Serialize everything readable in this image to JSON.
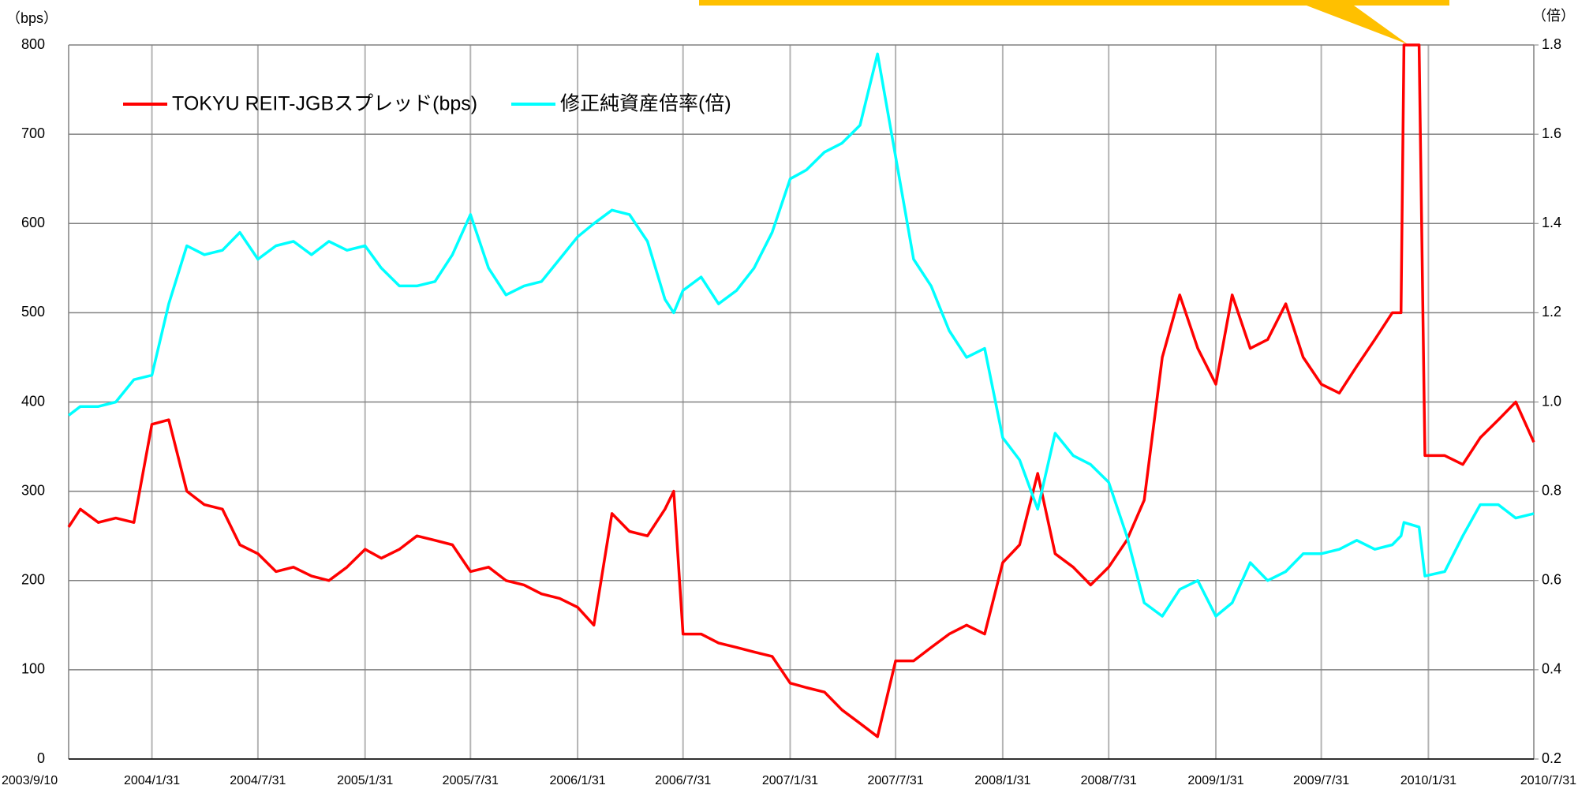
{
  "chart_data": {
    "type": "line",
    "axis_label": "（bps）",
    "y2_label": "（倍）",
    "x": [
      "2003/9/10",
      "2003/9/30",
      "2003/10/31",
      "2003/11/30",
      "2003/12/31",
      "2004/1/31",
      "2004/2/29",
      "2004/3/31",
      "2004/4/30",
      "2004/5/31",
      "2004/6/30",
      "2004/7/31",
      "2004/8/31",
      "2004/9/30",
      "2004/10/31",
      "2004/11/30",
      "2004/12/31",
      "2005/1/31",
      "2005/2/28",
      "2005/3/31",
      "2005/4/30",
      "2005/5/31",
      "2005/6/30",
      "2005/7/31",
      "2005/8/31",
      "2005/9/30",
      "2005/10/31",
      "2005/11/30",
      "2005/12/31",
      "2006/1/31",
      "2006/2/28",
      "2006/3/31",
      "2006/4/30",
      "2006/5/31",
      "2006/6/30",
      "2006/7/15",
      "2006/7/31",
      "2006/8/31",
      "2006/9/30",
      "2006/10/31",
      "2006/11/30",
      "2006/12/31",
      "2007/1/31",
      "2007/2/28",
      "2007/3/31",
      "2007/4/30",
      "2007/5/31",
      "2007/6/30",
      "2007/7/31",
      "2007/8/31",
      "2007/9/30",
      "2007/10/31",
      "2007/11/30",
      "2007/12/31",
      "2008/1/31",
      "2008/2/29",
      "2008/3/31",
      "2008/4/30",
      "2008/5/31",
      "2008/6/30",
      "2008/7/31",
      "2008/8/31",
      "2008/9/30",
      "2008/10/31",
      "2008/11/30",
      "2008/12/31",
      "2009/1/31",
      "2009/2/28",
      "2009/3/31",
      "2009/4/30",
      "2009/5/31",
      "2009/6/30",
      "2009/7/31",
      "2009/8/31",
      "2009/9/30",
      "2009/10/31",
      "2009/11/30",
      "2009/12/15",
      "2009/12/20",
      "2010/1/15",
      "2010/1/25",
      "2010/2/28",
      "2010/3/31",
      "2010/4/30",
      "2010/5/31",
      "2010/6/30",
      "2010/7/31"
    ],
    "series": [
      {
        "name": "TOKYU REIT-JGBスプレッド(bps)",
        "color": "#ff0000",
        "values": [
          260,
          280,
          265,
          270,
          265,
          375,
          380,
          300,
          285,
          280,
          240,
          230,
          210,
          215,
          205,
          200,
          215,
          235,
          225,
          235,
          250,
          245,
          240,
          210,
          215,
          200,
          195,
          185,
          180,
          170,
          150,
          275,
          255,
          250,
          280,
          300,
          140,
          140,
          130,
          125,
          120,
          115,
          85,
          80,
          75,
          55,
          40,
          25,
          110,
          110,
          125,
          140,
          150,
          140,
          220,
          240,
          320,
          230,
          215,
          195,
          215,
          245,
          290,
          450,
          520,
          460,
          420,
          520,
          460,
          470,
          510,
          450,
          420,
          410,
          440,
          470,
          500,
          500,
          800,
          800,
          340,
          340,
          330,
          360,
          380,
          400,
          355
        ]
      },
      {
        "name": "修正純資産倍率(倍)",
        "color": "#00ffff",
        "axis": "y2",
        "values": [
          0.97,
          0.99,
          0.99,
          1,
          1.05,
          1.06,
          1.22,
          1.35,
          1.33,
          1.34,
          1.38,
          1.32,
          1.35,
          1.36,
          1.33,
          1.36,
          1.34,
          1.35,
          1.3,
          1.26,
          1.26,
          1.27,
          1.33,
          1.42,
          1.3,
          1.24,
          1.26,
          1.27,
          1.32,
          1.37,
          1.4,
          1.43,
          1.42,
          1.36,
          1.23,
          1.2,
          1.25,
          1.28,
          1.22,
          1.25,
          1.3,
          1.38,
          1.5,
          1.52,
          1.56,
          1.58,
          1.62,
          1.78,
          1.55,
          1.32,
          1.26,
          1.16,
          1.1,
          1.12,
          0.92,
          0.87,
          0.76,
          0.93,
          0.88,
          0.86,
          0.82,
          0.7,
          0.55,
          0.52,
          0.58,
          0.6,
          0.52,
          0.55,
          0.64,
          0.6,
          0.62,
          0.66,
          0.66,
          0.67,
          0.69,
          0.67,
          0.68,
          0.7,
          0.73,
          0.72,
          0.61,
          0.62,
          0.7,
          0.77,
          0.77,
          0.74,
          0.75
        ]
      }
    ],
    "xlim": [
      "2003/9/10",
      "2010/7/31"
    ],
    "xticks": [
      "2003/9/10",
      "2004/1/31",
      "2004/7/31",
      "2005/1/31",
      "2005/7/31",
      "2006/1/31",
      "2006/7/31",
      "2007/1/31",
      "2007/7/31",
      "2008/1/31",
      "2008/7/31",
      "2009/1/31",
      "2009/7/31",
      "2010/1/31",
      "2010/7/31"
    ],
    "ylim": [
      0,
      800
    ],
    "yticks": [
      0,
      100,
      200,
      300,
      400,
      500,
      600,
      700,
      800
    ],
    "y2lim": [
      0.2,
      1.8
    ],
    "y2ticks": [
      0.2,
      0.4,
      0.6,
      0.8,
      {
        "value": 1,
        "label": "1.0"
      },
      1.2,
      1.4,
      1.6,
      1.8
    ],
    "grid": true,
    "legend": "top-left"
  }
}
